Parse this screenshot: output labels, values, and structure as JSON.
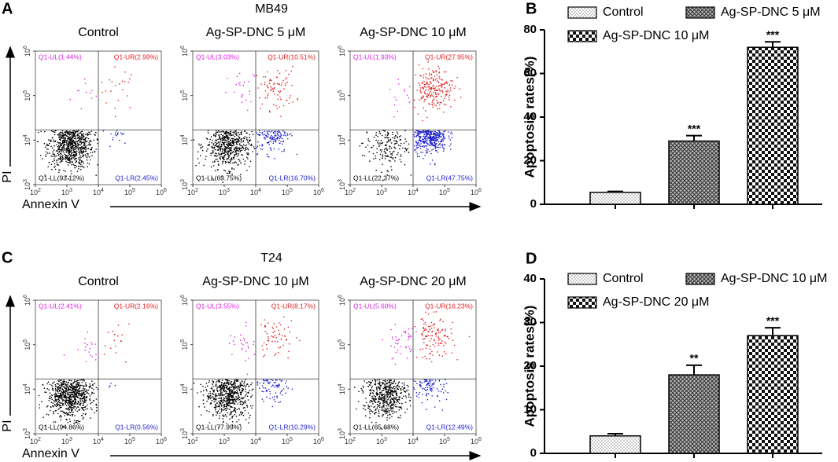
{
  "chart_data": [
    {
      "type": "flow",
      "panel_label": "A",
      "title": "MB49",
      "xlabel": "Annexin V",
      "ylabel": "PI",
      "log": true,
      "xlim": [
        100,
        1000000
      ],
      "ylim": [
        1000,
        1000000
      ],
      "gate_x": 10000,
      "gate_y": 17000,
      "xticks": [
        {
          "value": 100,
          "label": "10",
          "exponent": "2"
        },
        {
          "value": 1000,
          "label": "10",
          "exponent": "3"
        },
        {
          "value": 10000,
          "label": "10",
          "exponent": "4"
        },
        {
          "value": 100000,
          "label": "10",
          "exponent": "5"
        },
        {
          "value": 1000000,
          "label": "10",
          "exponent": "6"
        }
      ],
      "yticks": [
        {
          "value": 1000,
          "label": "10",
          "exponent": "3"
        },
        {
          "value": 10000,
          "label": "10",
          "exponent": "4"
        },
        {
          "value": 100000,
          "label": "10",
          "exponent": "5"
        },
        {
          "value": 1000000,
          "label": "10",
          "exponent": "6"
        }
      ],
      "quadrant_colors": [
        "#e020e0",
        "#e02020",
        "#000000",
        "#2020d0"
      ],
      "plots": [
        {
          "title": "Control",
          "quadrants": [
            {
              "label": "Q1-UL(1.44%)",
              "value": 1.44
            },
            {
              "label": "Q1-UR(2.99%)",
              "value": 2.99
            },
            {
              "label": "Q1-LL(93.12%)",
              "value": 93.12
            },
            {
              "label": "Q1-LR(2.45%)",
              "value": 2.45
            }
          ]
        },
        {
          "title": "Ag-SP-DNC 5 μM",
          "quadrants": [
            {
              "label": "Q1-UL(3.03%)",
              "value": 3.03
            },
            {
              "label": "Q1-UR(10.51%)",
              "value": 10.51
            },
            {
              "label": "Q1-LL(69.75%)",
              "value": 69.75
            },
            {
              "label": "Q1-LR(16.70%)",
              "value": 16.7
            }
          ]
        },
        {
          "title": "Ag-SP-DNC 10 μM",
          "quadrants": [
            {
              "label": "Q1-UL(1.93%)",
              "value": 1.93
            },
            {
              "label": "Q1-UR(27.95%)",
              "value": 27.95
            },
            {
              "label": "Q1-LL(22.37%)",
              "value": 22.37
            },
            {
              "label": "Q1-LR(47.75%)",
              "value": 47.75
            }
          ]
        }
      ]
    },
    {
      "type": "bar",
      "panel_label": "B",
      "ylabel": "Apoptosis rates(%)",
      "categories": [
        "Control",
        "Ag-SP-DNC 5 μM",
        "Ag-SP-DNC 10 μM"
      ],
      "patterns": [
        "dots",
        "crosshatch",
        "checker"
      ],
      "values": [
        5.5,
        29,
        72
      ],
      "errors": [
        0.4,
        2.5,
        2.5
      ],
      "annotations": [
        {
          "index": 1,
          "text": "***"
        },
        {
          "index": 2,
          "text": "***"
        }
      ],
      "ylim": [
        0,
        80
      ],
      "yticks": [
        0,
        20,
        40,
        60,
        80
      ]
    },
    {
      "type": "flow",
      "panel_label": "C",
      "title": "T24",
      "xlabel": "Annexin V",
      "ylabel": "PI",
      "log": true,
      "xlim": [
        100,
        1000000
      ],
      "ylim": [
        1000,
        1000000
      ],
      "gate_x": 10000,
      "gate_y": 17000,
      "xticks": [
        {
          "value": 100,
          "label": "10",
          "exponent": "2"
        },
        {
          "value": 1000,
          "label": "10",
          "exponent": "3"
        },
        {
          "value": 10000,
          "label": "10",
          "exponent": "4"
        },
        {
          "value": 100000,
          "label": "10",
          "exponent": "5"
        },
        {
          "value": 1000000,
          "label": "10",
          "exponent": "6"
        }
      ],
      "yticks": [
        {
          "value": 1000,
          "label": "10",
          "exponent": "3"
        },
        {
          "value": 10000,
          "label": "10",
          "exponent": "4"
        },
        {
          "value": 100000,
          "label": "10",
          "exponent": "5"
        },
        {
          "value": 1000000,
          "label": "10",
          "exponent": "6"
        }
      ],
      "quadrant_colors": [
        "#e020e0",
        "#e02020",
        "#000000",
        "#2020d0"
      ],
      "plots": [
        {
          "title": "Control",
          "quadrants": [
            {
              "label": "Q1-UL(2.41%)",
              "value": 2.41
            },
            {
              "label": "Q1-UR(2.16%)",
              "value": 2.16
            },
            {
              "label": "Q1-LL(94.86%)",
              "value": 94.86
            },
            {
              "label": "Q1-LR(0.56%)",
              "value": 0.56
            }
          ]
        },
        {
          "title": "Ag-SP-DNC 10 μM",
          "quadrants": [
            {
              "label": "Q1-UL(3.55%)",
              "value": 3.55
            },
            {
              "label": "Q1-UR(8.17%)",
              "value": 8.17
            },
            {
              "label": "Q1-LL(77.99%)",
              "value": 77.99
            },
            {
              "label": "Q1-LR(10.29%)",
              "value": 10.29
            }
          ]
        },
        {
          "title": "Ag-SP-DNC 20 μM",
          "quadrants": [
            {
              "label": "Q1-UL(5.60%)",
              "value": 5.6
            },
            {
              "label": "Q1-UR(16.23%)",
              "value": 16.23
            },
            {
              "label": "Q1-LL(65.68%)",
              "value": 65.68
            },
            {
              "label": "Q1-LR(12.49%)",
              "value": 12.49
            }
          ]
        }
      ]
    },
    {
      "type": "bar",
      "panel_label": "D",
      "ylabel": "Apoptosis rates(%)",
      "categories": [
        "Control",
        "Ag-SP-DNC 10 μM",
        "Ag-SP-DNC 20 μM"
      ],
      "patterns": [
        "dots",
        "crosshatch",
        "checker"
      ],
      "values": [
        4,
        18,
        27
      ],
      "errors": [
        0.5,
        2.2,
        1.8
      ],
      "annotations": [
        {
          "index": 1,
          "text": "**"
        },
        {
          "index": 2,
          "text": "***"
        }
      ],
      "ylim": [
        0,
        40
      ],
      "yticks": [
        0,
        10,
        20,
        30,
        40
      ]
    }
  ]
}
